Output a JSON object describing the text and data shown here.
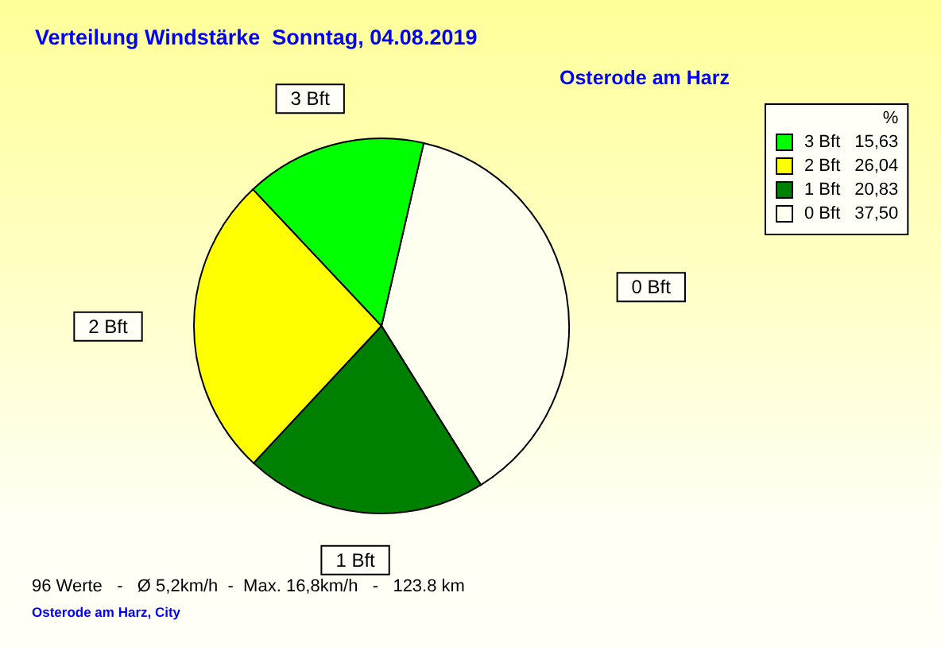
{
  "chart_data": {
    "type": "pie",
    "title": "Verteilung Windstärke  Sonntag, 04.08.2019",
    "subtitle": "Osterode am Harz",
    "categories": [
      "3 Bft",
      "2 Bft",
      "1 Bft",
      "0 Bft"
    ],
    "values": [
      15.63,
      26.04,
      20.83,
      37.5
    ],
    "value_labels": [
      "15,63",
      "26,04",
      "20,83",
      "37,50"
    ],
    "colors": [
      "#00ff00",
      "#ffff00",
      "#008000",
      "#fffff0"
    ],
    "legend_title": "%",
    "legend": "top right",
    "annotations": [
      "96 Werte   -   Ø 5,2km/h  -  Max. 16,8km/h   -   123.8 km",
      "Osterode am Harz, City"
    ]
  }
}
